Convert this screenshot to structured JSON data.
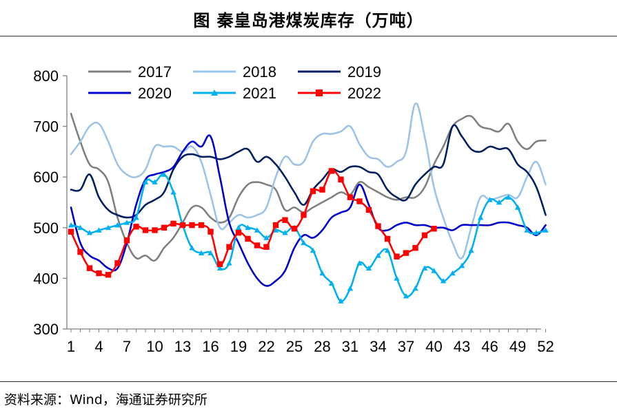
{
  "title": "图  秦皇岛港煤炭库存（万吨）",
  "source": "资料来源：Wind，海通证券研究所",
  "chart_data": {
    "type": "line",
    "title": "秦皇岛港煤炭库存（万吨）",
    "xlabel": "",
    "ylabel": "",
    "ylim": [
      300,
      800
    ],
    "yticks": [
      300,
      400,
      500,
      600,
      700,
      800
    ],
    "xlim": [
      1,
      52
    ],
    "xticks": [
      1,
      4,
      7,
      10,
      13,
      16,
      19,
      22,
      25,
      28,
      31,
      34,
      37,
      40,
      43,
      46,
      49,
      52
    ],
    "grid": false,
    "legend": "top",
    "series": [
      {
        "name": "2017",
        "color": "#808080",
        "marker": "none",
        "x": [
          1,
          2,
          3,
          4,
          5,
          6,
          7,
          8,
          9,
          10,
          11,
          12,
          13,
          14,
          15,
          16,
          17,
          18,
          19,
          20,
          21,
          22,
          23,
          24,
          25,
          26,
          27,
          28,
          29,
          30,
          31,
          32,
          33,
          34,
          35,
          36,
          37,
          38,
          39,
          40,
          41,
          42,
          43,
          44,
          45,
          46,
          47,
          48,
          49,
          50,
          51,
          52
        ],
        "values": [
          725,
          670,
          625,
          615,
          590,
          520,
          470,
          440,
          445,
          435,
          460,
          480,
          510,
          540,
          540,
          520,
          510,
          520,
          560,
          585,
          590,
          585,
          575,
          535,
          540,
          530,
          540,
          550,
          560,
          570,
          565,
          590,
          580,
          570,
          560,
          555,
          560,
          560,
          580,
          625,
          660,
          700,
          715,
          720,
          700,
          695,
          690,
          705,
          670,
          655,
          670,
          672
        ]
      },
      {
        "name": "2018",
        "color": "#9DC3E6",
        "marker": "none",
        "x": [
          1,
          2,
          3,
          4,
          5,
          6,
          7,
          8,
          9,
          10,
          11,
          12,
          13,
          14,
          15,
          16,
          17,
          18,
          19,
          20,
          21,
          22,
          23,
          24,
          25,
          26,
          27,
          28,
          29,
          30,
          31,
          32,
          33,
          34,
          35,
          36,
          37,
          38,
          39,
          40,
          41,
          42,
          43,
          44,
          45,
          46,
          47,
          48,
          49,
          50,
          51,
          52
        ],
        "values": [
          645,
          670,
          700,
          705,
          670,
          625,
          605,
          600,
          615,
          660,
          660,
          660,
          650,
          660,
          630,
          565,
          500,
          510,
          525,
          520,
          525,
          540,
          600,
          640,
          625,
          630,
          670,
          685,
          685,
          690,
          700,
          665,
          640,
          635,
          620,
          630,
          650,
          745,
          680,
          580,
          520,
          470,
          440,
          500,
          560,
          555,
          560,
          565,
          560,
          600,
          630,
          585
        ]
      },
      {
        "name": "2019",
        "color": "#002060",
        "marker": "none",
        "x": [
          1,
          2,
          3,
          4,
          5,
          6,
          7,
          8,
          9,
          10,
          11,
          12,
          13,
          14,
          15,
          16,
          17,
          18,
          19,
          20,
          21,
          22,
          23,
          24,
          25,
          26,
          27,
          28,
          29,
          30,
          31,
          32,
          33,
          34,
          35,
          36,
          37,
          38,
          39,
          40,
          41,
          42,
          43,
          44,
          45,
          46,
          47,
          48,
          49,
          50,
          51,
          52
        ],
        "values": [
          575,
          575,
          605,
          560,
          535,
          525,
          520,
          525,
          545,
          555,
          570,
          615,
          640,
          645,
          640,
          640,
          635,
          640,
          650,
          655,
          630,
          640,
          625,
          600,
          570,
          545,
          575,
          595,
          615,
          610,
          620,
          620,
          610,
          605,
          575,
          560,
          555,
          585,
          605,
          620,
          625,
          700,
          680,
          655,
          650,
          660,
          655,
          655,
          625,
          610,
          580,
          525
        ]
      },
      {
        "name": "2020",
        "color": "#0000CC",
        "marker": "none",
        "x": [
          1,
          2,
          3,
          4,
          5,
          6,
          7,
          8,
          9,
          10,
          11,
          12,
          13,
          14,
          15,
          16,
          17,
          18,
          19,
          20,
          21,
          22,
          23,
          24,
          25,
          26,
          27,
          28,
          29,
          30,
          31,
          32,
          33,
          34,
          35,
          36,
          37,
          38,
          39,
          40,
          41,
          42,
          43,
          44,
          45,
          46,
          47,
          48,
          49,
          50,
          51,
          52
        ],
        "values": [
          540,
          470,
          445,
          435,
          420,
          420,
          470,
          545,
          595,
          605,
          610,
          620,
          650,
          670,
          660,
          680,
          600,
          510,
          470,
          430,
          400,
          385,
          395,
          415,
          460,
          485,
          480,
          495,
          520,
          530,
          540,
          585,
          545,
          500,
          495,
          505,
          510,
          505,
          505,
          500,
          500,
          495,
          505,
          505,
          505,
          505,
          510,
          510,
          505,
          500,
          485,
          505
        ]
      },
      {
        "name": "2021",
        "color": "#00B0F0",
        "marker": "triangle",
        "x": [
          1,
          2,
          3,
          4,
          5,
          6,
          7,
          8,
          9,
          10,
          11,
          12,
          13,
          14,
          15,
          16,
          17,
          18,
          19,
          20,
          21,
          22,
          23,
          24,
          25,
          26,
          27,
          28,
          29,
          30,
          31,
          32,
          33,
          34,
          35,
          36,
          37,
          38,
          39,
          40,
          41,
          42,
          43,
          44,
          45,
          46,
          47,
          48,
          49,
          50,
          51,
          52
        ],
        "values": [
          505,
          500,
          490,
          495,
          500,
          505,
          510,
          520,
          590,
          590,
          605,
          570,
          505,
          460,
          450,
          450,
          420,
          430,
          500,
          500,
          495,
          480,
          495,
          490,
          500,
          470,
          455,
          410,
          390,
          355,
          380,
          430,
          420,
          445,
          455,
          400,
          365,
          380,
          420,
          415,
          395,
          410,
          425,
          455,
          520,
          555,
          550,
          560,
          540,
          495,
          490,
          495
        ]
      },
      {
        "name": "2022",
        "color": "#FF0000",
        "marker": "square",
        "x": [
          1,
          2,
          3,
          4,
          5,
          6,
          7,
          8,
          9,
          10,
          11,
          12,
          13,
          14,
          15,
          16,
          17,
          18,
          19,
          20,
          21,
          22,
          23,
          24,
          25,
          26,
          27,
          28,
          29,
          30,
          31,
          32,
          33,
          34,
          35,
          36,
          37,
          38,
          39,
          40
        ],
        "values": [
          492,
          452,
          420,
          410,
          407,
          430,
          475,
          502,
          495,
          495,
          500,
          508,
          505,
          505,
          505,
          492,
          428,
          462,
          490,
          478,
          465,
          462,
          505,
          515,
          498,
          525,
          572,
          575,
          612,
          595,
          560,
          552,
          535,
          503,
          478,
          443,
          450,
          460,
          485,
          498
        ]
      }
    ]
  }
}
